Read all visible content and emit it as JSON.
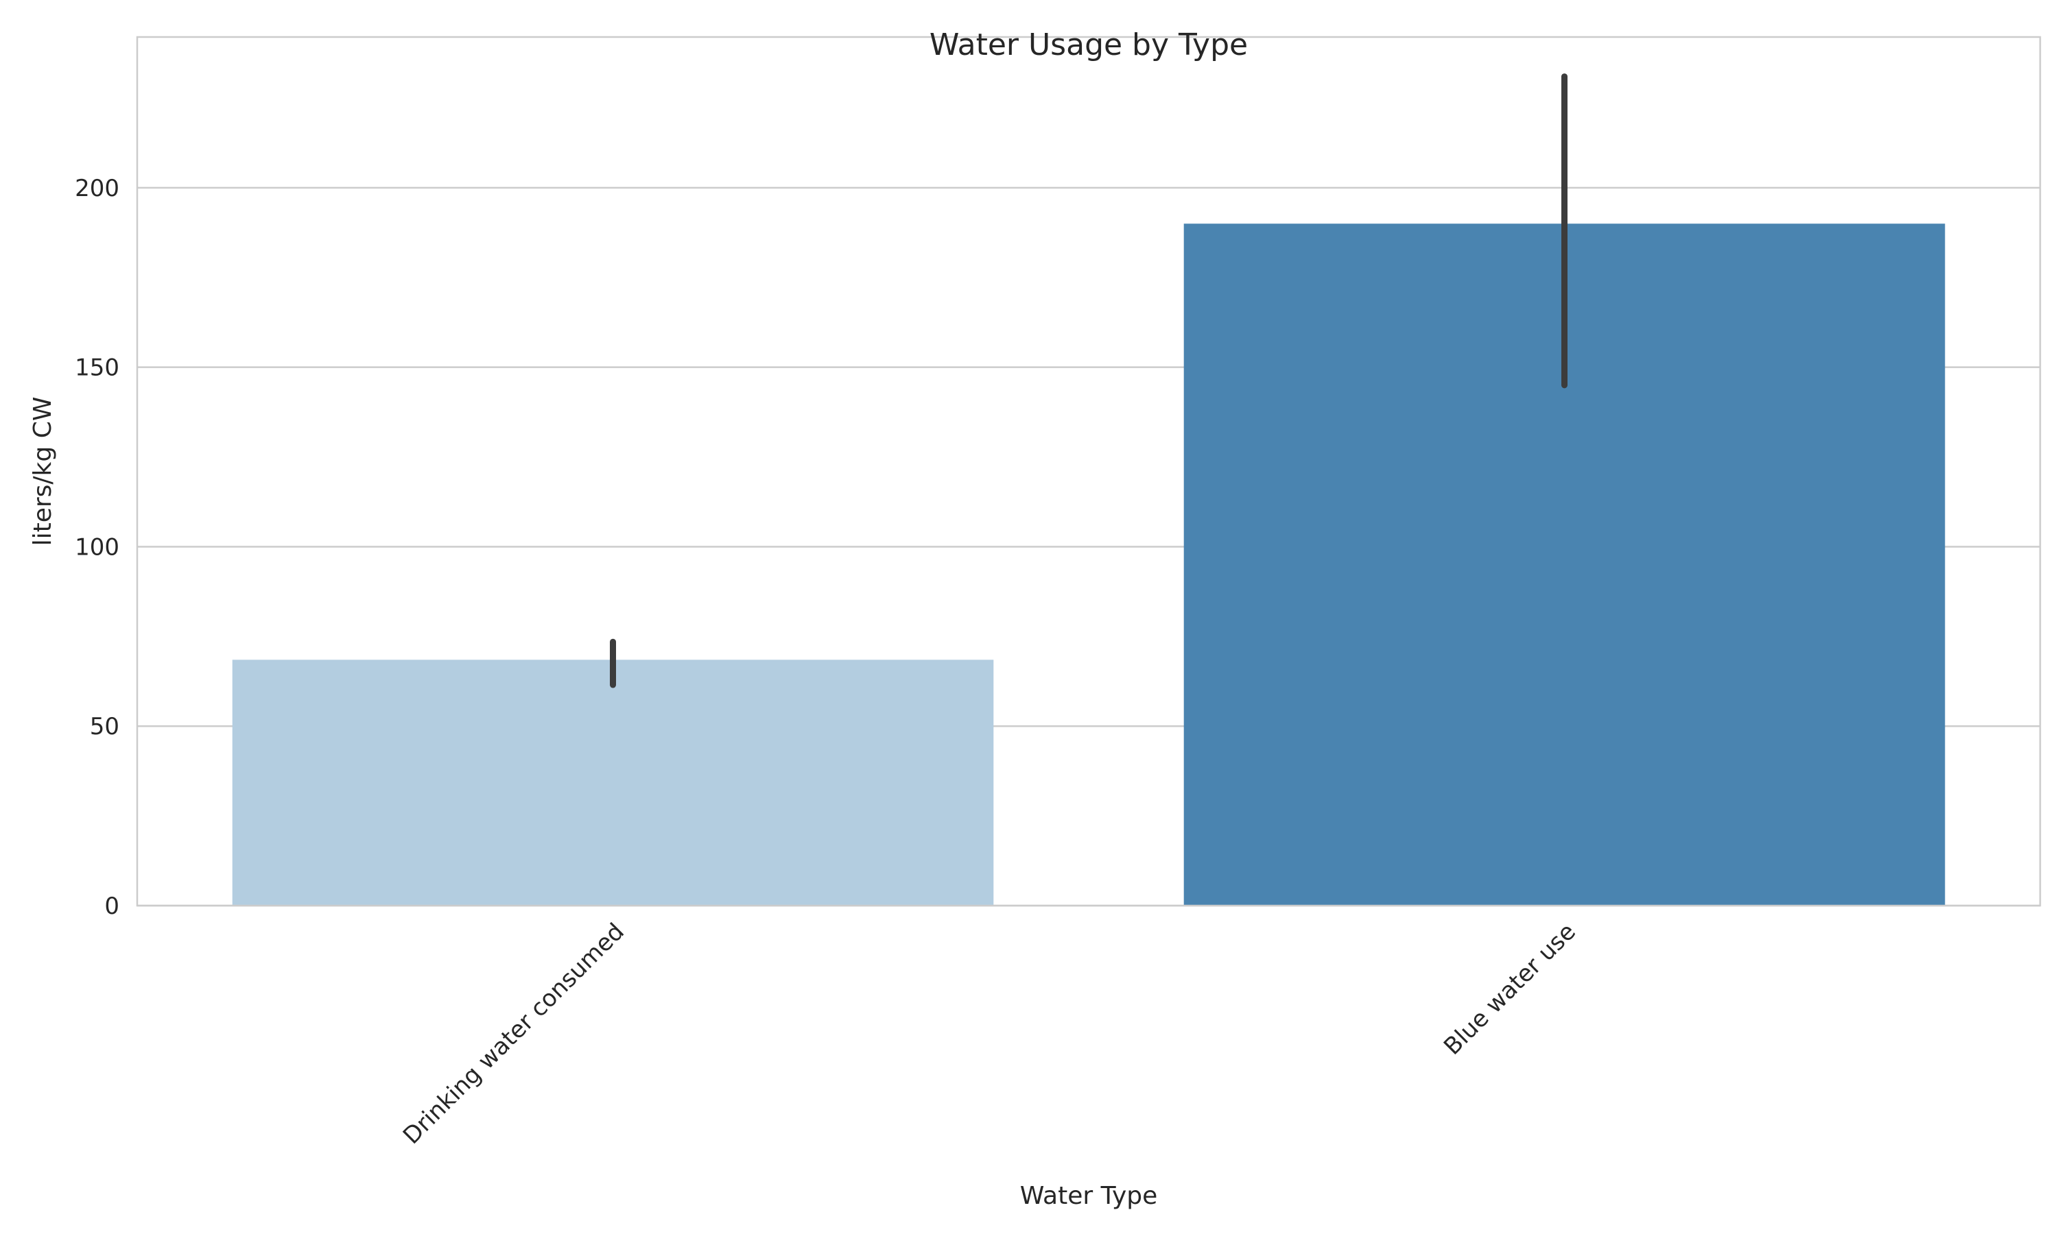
{
  "chart_data": {
    "type": "bar",
    "title": "Water Usage by Type",
    "xlabel": "Water Type",
    "ylabel": "liters/kg CW",
    "categories": [
      "Drinking water consumed",
      "Blue water use"
    ],
    "values": [
      68.5,
      190
    ],
    "error_bars": [
      {
        "low": 61.5,
        "high": 73.5
      },
      {
        "low": 145,
        "high": 231
      }
    ],
    "colors": [
      "#b3cde0",
      "#4a84b0"
    ],
    "error_bar_color": "#3c3c3c",
    "ylim": [
      0,
      242
    ],
    "yticks": [
      0,
      50,
      100,
      150,
      200
    ],
    "ytick_labels": [
      "0",
      "50",
      "100",
      "150",
      "200"
    ],
    "grid": "horizontal",
    "xtick_rotation_deg": 45,
    "legend": "none"
  }
}
